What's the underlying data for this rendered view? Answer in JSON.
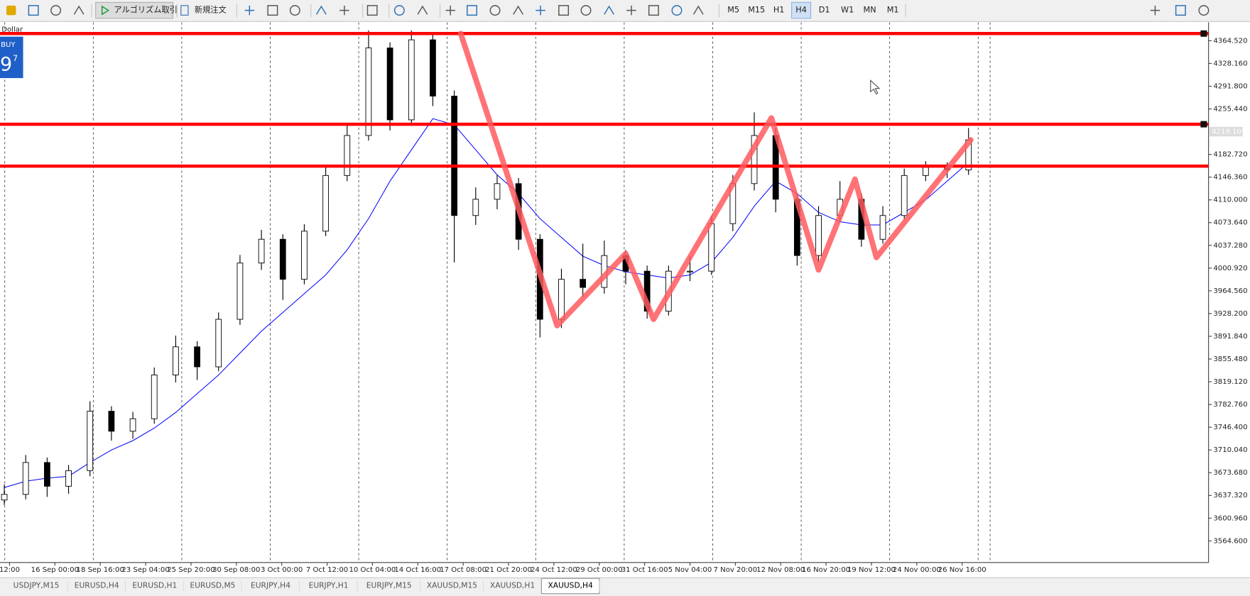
{
  "toolbar": {
    "algo_trading": "アルゴリズム取引",
    "new_order": "新規注文",
    "timeframes": [
      "M5",
      "M15",
      "H1",
      "H4",
      "D1",
      "W1",
      "MN",
      "M1"
    ],
    "active_timeframe": 3
  },
  "overlay": {
    "symbol_label": "Dollar",
    "button": "BUY",
    "price_big": "9",
    "price_small": "7"
  },
  "chart_data": {
    "type": "candlestick",
    "xlim": [
      -0.2,
      56.2
    ],
    "ylim": [
      3530,
      4394
    ],
    "yticks": [
      {
        "value": 4364.52,
        "label": "4364.520"
      },
      {
        "value": 4328.16,
        "label": "4328.160"
      },
      {
        "value": 4291.8,
        "label": "4291.800"
      },
      {
        "value": 4255.44,
        "label": "4255.440"
      },
      {
        "value": 4182.72,
        "label": "4182.720"
      },
      {
        "value": 4146.36,
        "label": "4146.360"
      },
      {
        "value": 4110,
        "label": "4110.000"
      },
      {
        "value": 4073.64,
        "label": "4073.640"
      },
      {
        "value": 4037.28,
        "label": "4037.280"
      },
      {
        "value": 4000.92,
        "label": "4000.920"
      },
      {
        "value": 3964.56,
        "label": "3964.560"
      },
      {
        "value": 3928.2,
        "label": "3928.200"
      },
      {
        "value": 3891.84,
        "label": "3891.840"
      },
      {
        "value": 3855.48,
        "label": "3855.480"
      },
      {
        "value": 3819.12,
        "label": "3819.120"
      },
      {
        "value": 3782.76,
        "label": "3782.760"
      },
      {
        "value": 3746.4,
        "label": "3746.400"
      },
      {
        "value": 3710.04,
        "label": "3710.040"
      },
      {
        "value": 3673.68,
        "label": "3673.680"
      },
      {
        "value": 3637.32,
        "label": "3637.320"
      },
      {
        "value": 3600.96,
        "label": "3600.960"
      },
      {
        "value": 3564.6,
        "label": "3564.600"
      }
    ],
    "xlabels": [
      "12:00",
      "16 Sep 00:00",
      "18 Sep 16:00",
      "23 Sep 04:00",
      "25 Sep 20:00",
      "30 Sep 08:00",
      "3 Oct 00:00",
      "7 Oct 12:00",
      "10 Oct 04:00",
      "14 Oct 16:00",
      "17 Oct 08:00",
      "21 Oct 20:00",
      "24 Oct 12:00",
      "29 Oct 00:00",
      "31 Oct 16:00",
      "5 Nov 04:00",
      "7 Nov 20:00",
      "12 Nov 08:00",
      "16 Nov 20:00",
      "19 Nov 12:00",
      "24 Nov 00:00",
      "26 Nov 16:00"
    ],
    "current_price": 4219.105,
    "candles": {
      "up_color": "#ffffff",
      "down_color": "#000000",
      "edge_color": "#000000",
      "open": [
        3630,
        3639,
        3690,
        3652,
        3677,
        3772,
        3740,
        3760,
        3830,
        3875,
        3843,
        3919,
        4009,
        4047,
        3983,
        4060,
        4149,
        4213,
        4353,
        4238,
        4366,
        4276,
        4085,
        4111,
        4136,
        4047,
        3919,
        3983,
        3970,
        4021,
        3996,
        3932,
        3996,
        3996,
        4072,
        4136,
        4213,
        4111,
        4021,
        4085,
        4111,
        4047,
        4085,
        4149,
        4162,
        4158
      ],
      "high": [
        3655,
        3702,
        3698,
        3686,
        3788,
        3780,
        3771,
        3842,
        3893,
        3884,
        3930,
        4022,
        4062,
        4055,
        4071,
        4165,
        4230,
        4381,
        4362,
        4381,
        4375,
        4285,
        4130,
        4150,
        4145,
        4055,
        4000,
        4040,
        4045,
        4030,
        4005,
        4005,
        4020,
        4085,
        4150,
        4250,
        4225,
        4120,
        4100,
        4140,
        4120,
        4100,
        4160,
        4172,
        4170,
        4225
      ],
      "low": [
        3622,
        3631,
        3635,
        3640,
        3668,
        3725,
        3728,
        3752,
        3818,
        3822,
        3836,
        3910,
        3998,
        3950,
        3975,
        4052,
        4140,
        4205,
        4221,
        4230,
        4260,
        4010,
        4070,
        4095,
        4030,
        3890,
        3905,
        3955,
        3960,
        3975,
        3920,
        3925,
        3980,
        3990,
        4060,
        4125,
        4090,
        4005,
        4010,
        4075,
        4035,
        4040,
        4078,
        4140,
        4145,
        4150
      ],
      "close": [
        3639,
        3690,
        3652,
        3677,
        3772,
        3740,
        3760,
        3830,
        3875,
        3843,
        3919,
        4009,
        4047,
        3983,
        4060,
        4149,
        4213,
        4353,
        4238,
        4366,
        4276,
        4085,
        4111,
        4136,
        4047,
        3919,
        3983,
        3970,
        4021,
        3996,
        3932,
        3996,
        3996,
        4072,
        4136,
        4213,
        4111,
        4021,
        4085,
        4111,
        4047,
        4085,
        4149,
        4162,
        4158,
        4206
      ]
    },
    "moving_average": {
      "color": "#0000ff",
      "values": [
        3650,
        3660,
        3665,
        3668,
        3690,
        3710,
        3725,
        3745,
        3770,
        3800,
        3830,
        3865,
        3900,
        3930,
        3960,
        3990,
        4030,
        4080,
        4140,
        4190,
        4240,
        4230,
        4190,
        4150,
        4120,
        4080,
        4050,
        4020,
        4005,
        3995,
        3990,
        3985,
        3990,
        4010,
        4050,
        4100,
        4140,
        4120,
        4090,
        4075,
        4070,
        4070,
        4090,
        4110,
        4140,
        4170
      ]
    },
    "levels": {
      "color": "#ff0000",
      "values": [
        4376,
        4231,
        4164
      ]
    },
    "zigzag": {
      "color": "#ff5a5f",
      "x": [
        21.3,
        25.8,
        29,
        30.3,
        35.8,
        38,
        39.7,
        40.7,
        45.1
      ],
      "y": [
        4376,
        3909,
        4024,
        3919,
        4241,
        3998,
        4143,
        4018,
        4206
      ]
    }
  },
  "tabs": {
    "items": [
      "USDJPY,M15",
      "EURUSD,H4",
      "EURUSD,H1",
      "EURUSD,M5",
      "EURJPY,H4",
      "EURJPY,H1",
      "EURJPY,M15",
      "XAUUSD,M15",
      "XAUUSD,H1",
      "XAUUSD,H4"
    ],
    "active": 9
  }
}
